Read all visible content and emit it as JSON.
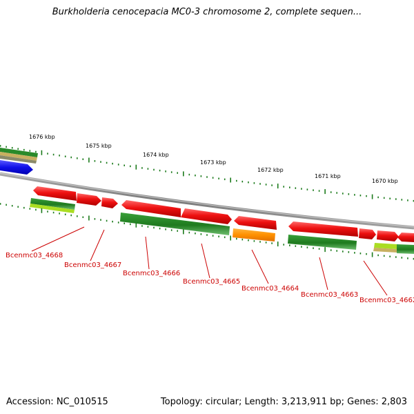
{
  "title": "Burkholderia cenocepacia MC0-3 chromosome 2, complete sequen...",
  "footer": {
    "accession": "Accession: NC_010515",
    "topology": "Topology: circular; Length: 3,213,911 bp; Genes: 2,803"
  },
  "ruler_labels": [
    "1676 kbp",
    "1675 kbp",
    "1674 kbp",
    "1673 kbp",
    "1672 kbp",
    "1671 kbp",
    "1670 kbp"
  ],
  "gene_labels": [
    "Bcenmc03_4668",
    "Bcenmc03_4667",
    "Bcenmc03_4666",
    "Bcenmc03_4665",
    "Bcenmc03_4664",
    "Bcenmc03_4663",
    "Bcenmc03_4662"
  ],
  "colors": {
    "forward_gene": "#e81010",
    "reverse_gene": "#2a8a2a",
    "orange_gene": "#ff9900",
    "blue_gene": "#1010e8",
    "lime_gene": "#aadd22",
    "backbone": "#888888",
    "tick": "#1a7a1a",
    "label": "#cc0000"
  }
}
